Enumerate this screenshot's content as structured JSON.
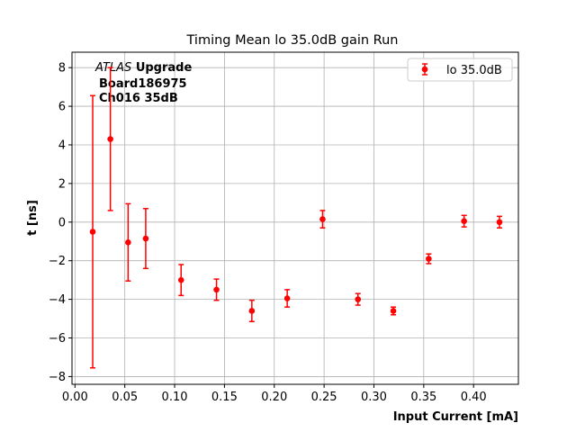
{
  "chart_data": {
    "type": "scatter",
    "title": "Timing Mean lo 35.0dB gain Run",
    "xlabel": "Input Current [mA]",
    "ylabel": "t [ns]",
    "xlim": [
      -0.003,
      0.445
    ],
    "ylim": [
      -8.4,
      8.8
    ],
    "xticks": [
      "0.00",
      "0.05",
      "0.10",
      "0.15",
      "0.20",
      "0.25",
      "0.30",
      "0.35",
      "0.40"
    ],
    "xtick_values": [
      0.0,
      0.05,
      0.1,
      0.15,
      0.2,
      0.25,
      0.3,
      0.35,
      0.4
    ],
    "yticks": [
      "−8",
      "−6",
      "−4",
      "−2",
      "0",
      "2",
      "4",
      "6",
      "8"
    ],
    "ytick_values": [
      -8,
      -6,
      -4,
      -2,
      0,
      2,
      4,
      6,
      8
    ],
    "grid": true,
    "legend_position": "top-right",
    "annotation": {
      "line1_italic": "ATLAS",
      "line1_bold": "Upgrade",
      "line2": "Board186975",
      "line3": "Ch016 35dB"
    },
    "series": [
      {
        "name": "lo 35.0dB",
        "color": "#ff0000",
        "x": [
          0.0178,
          0.0355,
          0.0533,
          0.071,
          0.1065,
          0.142,
          0.1775,
          0.213,
          0.2485,
          0.284,
          0.3195,
          0.355,
          0.3905,
          0.426
        ],
        "y": [
          -0.5,
          4.3,
          -1.05,
          -0.85,
          -3.0,
          -3.5,
          -4.6,
          -3.95,
          0.15,
          -4.0,
          -4.6,
          -1.9,
          0.05,
          0.0
        ],
        "yerr": [
          7.05,
          3.7,
          2.0,
          1.55,
          0.8,
          0.55,
          0.55,
          0.45,
          0.45,
          0.3,
          0.2,
          0.25,
          0.3,
          0.3
        ]
      }
    ]
  }
}
